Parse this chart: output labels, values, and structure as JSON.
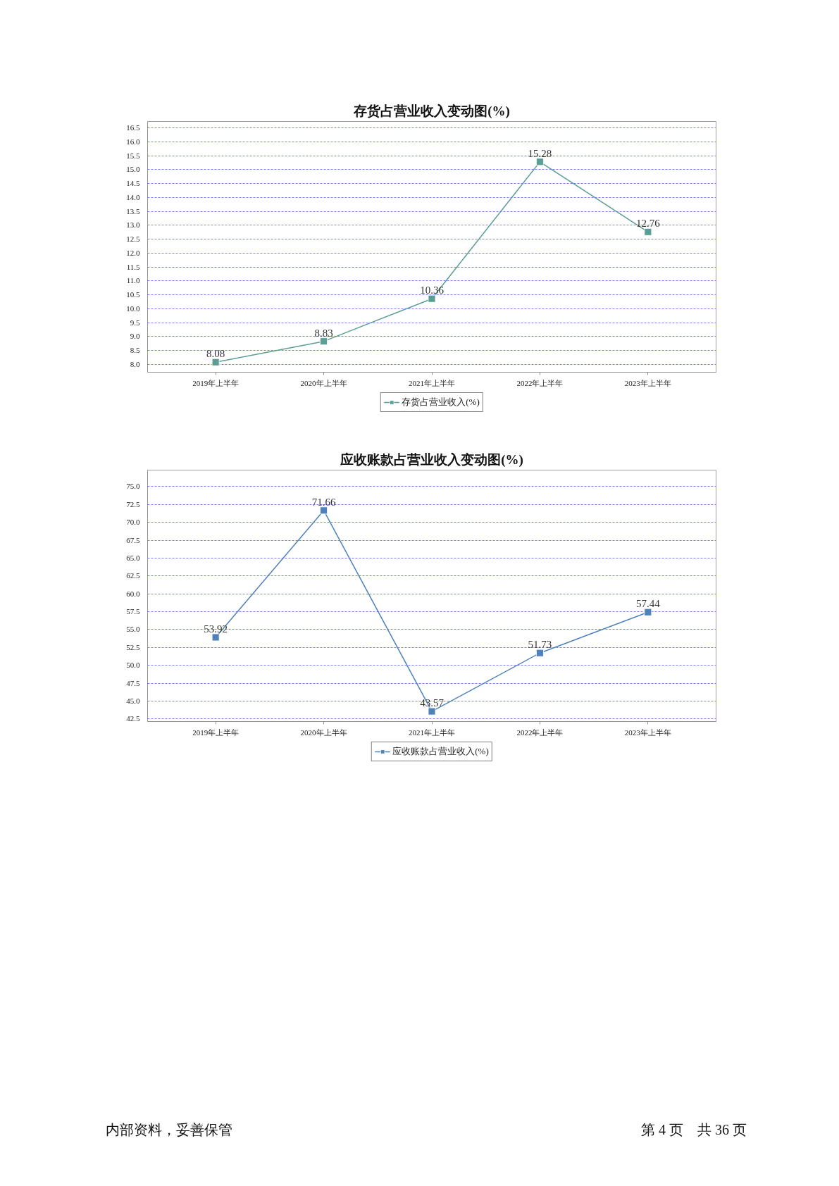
{
  "chart_data": [
    {
      "type": "line",
      "title": "存货占营业收入变动图(%)",
      "categories": [
        "2019年上半年",
        "2020年上半年",
        "2021年上半年",
        "2022年上半年",
        "2023年上半年"
      ],
      "series": [
        {
          "name": "存货占营业收入(%)",
          "color": "#5b9e96",
          "values": [
            8.08,
            8.83,
            10.36,
            15.28,
            12.76
          ]
        }
      ],
      "ylim": [
        7.72,
        16.73
      ],
      "yticks": [
        {
          "value": 8,
          "label": "8.0"
        },
        8.5,
        {
          "value": 9,
          "label": "9.0"
        },
        9.5,
        {
          "value": 10,
          "label": "10.0"
        },
        10.5,
        {
          "value": 11,
          "label": "11.0"
        },
        11.5,
        {
          "value": 12,
          "label": "12.0"
        },
        12.5,
        {
          "value": 13,
          "label": "13.0"
        },
        13.5,
        {
          "value": 14,
          "label": "14.0"
        },
        14.5,
        {
          "value": 15,
          "label": "15.0"
        },
        15.5,
        {
          "value": 16,
          "label": "16.0"
        },
        16.5
      ],
      "grid": "y",
      "legend": "bottom",
      "marker": "square",
      "line_style": "solid",
      "data_labels": true
    },
    {
      "type": "line",
      "title": "应收账款占营业收入变动图(%)",
      "categories": [
        "2019年上半年",
        "2020年上半年",
        "2021年上半年",
        "2022年上半年",
        "2023年上半年"
      ],
      "series": [
        {
          "name": "应收账款占营业收入(%)",
          "color": "#4f81bd",
          "values": [
            53.92,
            71.66,
            43.57,
            51.73,
            57.44
          ]
        }
      ],
      "ylim": [
        42.15,
        77.3
      ],
      "yticks": [
        42.5,
        {
          "value": 45,
          "label": "45.0"
        },
        47.5,
        {
          "value": 50,
          "label": "50.0"
        },
        52.5,
        {
          "value": 55,
          "label": "55.0"
        },
        57.5,
        {
          "value": 60,
          "label": "60.0"
        },
        62.5,
        {
          "value": 65,
          "label": "65.0"
        },
        67.5,
        {
          "value": 70,
          "label": "70.0"
        },
        72.5,
        {
          "value": 75,
          "label": "75.0"
        }
      ],
      "grid": "y",
      "legend": "bottom",
      "marker": "square",
      "line_style": "solid",
      "data_labels": true,
      "annotations": [
        "内部资料，妥善保管",
        "第 4 页　共 36 页"
      ]
    }
  ]
}
